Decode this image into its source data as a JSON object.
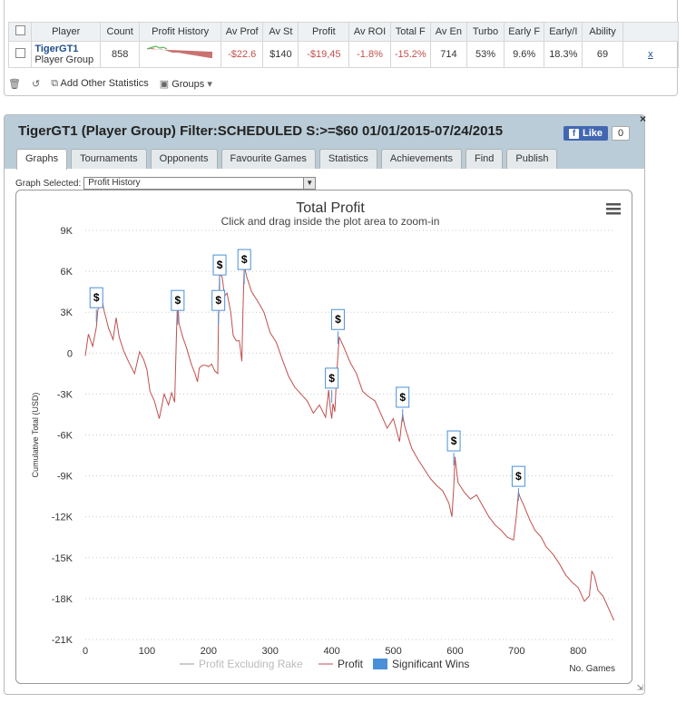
{
  "stats_table": {
    "headers": [
      "Player",
      "Count",
      "Profit History",
      "Av Prof",
      "Av St",
      "Profit",
      "Av ROI",
      "Total F",
      "Av En",
      "Turbo",
      "Early F",
      "Early/I",
      "Ability"
    ],
    "row": {
      "player_name": "TigerGT1",
      "player_group": "Player Group",
      "count": "858",
      "av_profit": "-$22.6",
      "av_stake": "$140",
      "profit": "-$19,45",
      "av_roi": "-1.8%",
      "total_roi": "-15.2%",
      "av_entrants": "714",
      "turbo": "53%",
      "early_f": "9.6%",
      "early_i": "18.3%",
      "ability": "69",
      "remove": "x"
    }
  },
  "toolbar": {
    "add_stats": "Add Other Statistics",
    "groups": "Groups"
  },
  "panel": {
    "title": "TigerGT1 (Player Group) Filter:SCHEDULED S:>=$60 01/01/2015-07/24/2015",
    "fb_like": "Like",
    "fb_count": "0",
    "close": "×",
    "tabs": [
      "Graphs",
      "Tournaments",
      "Opponents",
      "Favourite Games",
      "Statistics",
      "Achievements",
      "Find",
      "Publish"
    ],
    "graph_selected_label": "Graph Selected:",
    "graph_selected_value": "Profit History"
  },
  "colors": {
    "profit_line": "#c0504d",
    "sig_win": "#4a90d9",
    "excl_rake": "#cccccc",
    "header_bg": "#b9ccd7"
  },
  "chart_data": {
    "type": "line",
    "title": "Total Profit",
    "subtitle": "Click and drag inside the plot area to zoom-in",
    "ylabel": "Cumulative Total (USD)",
    "xlabel": "No. Games",
    "xlim": [
      0,
      860
    ],
    "ylim": [
      -21000,
      9000
    ],
    "yticks": [
      9000,
      6000,
      3000,
      0,
      -3000,
      -6000,
      -9000,
      -12000,
      -15000,
      -18000,
      -21000
    ],
    "ytick_labels": [
      "9K",
      "6K",
      "3K",
      "0",
      "-3K",
      "-6K",
      "-9K",
      "-12K",
      "-15K",
      "-18K",
      "-21K"
    ],
    "xticks": [
      0,
      100,
      200,
      300,
      400,
      500,
      600,
      700,
      800
    ],
    "legend": [
      "Profit Excluding Rake",
      "Profit",
      "Significant Wins"
    ],
    "legend_placement": "bottom",
    "grid": true,
    "series": [
      {
        "name": "Profit",
        "x": [
          0,
          5,
          12,
          18,
          20,
          25,
          30,
          38,
          45,
          50,
          55,
          62,
          70,
          80,
          88,
          95,
          100,
          105,
          112,
          120,
          128,
          135,
          140,
          145,
          148,
          150,
          152,
          158,
          165,
          172,
          178,
          182,
          185,
          190,
          196,
          200,
          205,
          210,
          215,
          216,
          218,
          222,
          226,
          230,
          236,
          240,
          245,
          250,
          254,
          256,
          258,
          262,
          270,
          280,
          290,
          300,
          310,
          320,
          330,
          340,
          350,
          360,
          370,
          380,
          390,
          395,
          398,
          400,
          402,
          405,
          408,
          412,
          415,
          420,
          430,
          440,
          450,
          460,
          470,
          480,
          490,
          500,
          510,
          515,
          518,
          522,
          530,
          540,
          550,
          560,
          570,
          580,
          590,
          595,
          598,
          600,
          605,
          615,
          625,
          635,
          645,
          655,
          665,
          675,
          685,
          695,
          700,
          703,
          705,
          712,
          722,
          730,
          740,
          748,
          752,
          760,
          770,
          780,
          790,
          800,
          810,
          818,
          822,
          826,
          832,
          840,
          848,
          853,
          858
        ],
        "y": [
          -200,
          1400,
          500,
          1900,
          3000,
          4500,
          3200,
          1800,
          1000,
          2600,
          1200,
          200,
          -600,
          -1500,
          100,
          -500,
          -1200,
          -2800,
          -3500,
          -4800,
          -3000,
          -3800,
          -2900,
          -3600,
          1500,
          4200,
          2200,
          1200,
          300,
          -800,
          -1500,
          -2100,
          -1100,
          -900,
          -900,
          -1000,
          -800,
          -1300,
          -1500,
          2000,
          5800,
          5600,
          4200,
          4400,
          3000,
          1300,
          900,
          900,
          -600,
          3200,
          6400,
          5600,
          4500,
          3800,
          3000,
          1500,
          800,
          -500,
          -1700,
          -2500,
          -3000,
          -3500,
          -4400,
          -3800,
          -4700,
          -2700,
          -4200,
          -4800,
          -3700,
          -4300,
          -1500,
          1200,
          900,
          400,
          -700,
          -1500,
          -2800,
          -3200,
          -3500,
          -4500,
          -5500,
          -4800,
          -6500,
          -4500,
          -5300,
          -5900,
          -7000,
          -7800,
          -8500,
          -9200,
          -9700,
          -10100,
          -11000,
          -12000,
          -9800,
          -7600,
          -9500,
          -10200,
          -10700,
          -10400,
          -11200,
          -12000,
          -12600,
          -13000,
          -13500,
          -13700,
          -11800,
          -10200,
          -10500,
          -11200,
          -12300,
          -13000,
          -13500,
          -14200,
          -14400,
          -14800,
          -15500,
          -16300,
          -16800,
          -17200,
          -18200,
          -17800,
          -16000,
          -16300,
          -17400,
          -17800,
          -18600,
          -19100,
          -19600
        ]
      }
    ],
    "significant_wins": [
      {
        "x": 18,
        "y": 3200
      },
      {
        "x": 150,
        "y": 3000
      },
      {
        "x": 216,
        "y": 3000
      },
      {
        "x": 218,
        "y": 5600
      },
      {
        "x": 258,
        "y": 6000
      },
      {
        "x": 400,
        "y": -2700
      },
      {
        "x": 410,
        "y": 1600
      },
      {
        "x": 515,
        "y": -4100
      },
      {
        "x": 598,
        "y": -7300
      },
      {
        "x": 703,
        "y": -9900
      }
    ]
  }
}
